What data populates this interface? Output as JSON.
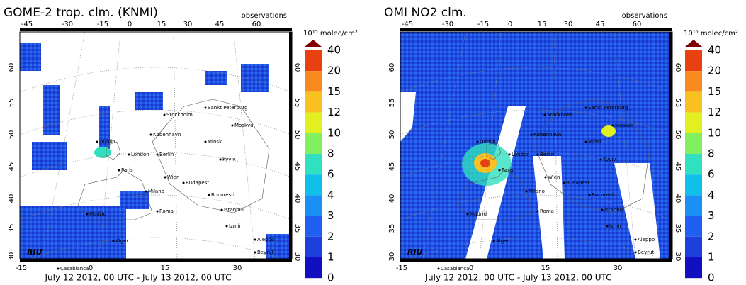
{
  "panels": [
    {
      "title": "GOME-2 trop. clm. (KNMI)",
      "corner_label": "observations",
      "top_ticks": [
        "-45",
        "-30",
        "-15",
        "0",
        "15",
        "30",
        "45",
        "60"
      ],
      "bottom_ticks": [
        "-15",
        "0",
        "15",
        "30"
      ],
      "side_ticks": [
        "60",
        "55",
        "50",
        "45",
        "40",
        "35",
        "30"
      ],
      "date": "July 12 2012, 00 UTC - July 13 2012, 00 UTC",
      "logo": "RIU"
    },
    {
      "title": "OMI NO2 clm.",
      "corner_label": "observations",
      "top_ticks": [
        "-45",
        "-30",
        "-15",
        "0",
        "15",
        "30",
        "45",
        "60"
      ],
      "bottom_ticks": [
        "-15",
        "0",
        "15",
        "30"
      ],
      "side_ticks": [
        "60",
        "55",
        "50",
        "45",
        "40",
        "35",
        "30"
      ],
      "date": "July 12 2012, 00 UTC - July 13 2012, 00 UTC",
      "logo": "RIU"
    }
  ],
  "colorbar": {
    "unit": "10¹⁵ molec/cm²",
    "labels": [
      "40",
      "20",
      "15",
      "12",
      "10",
      "8",
      "6",
      "4",
      "3",
      "2",
      "1",
      "0"
    ]
  },
  "cities": [
    "Sankt Peterburg",
    "Stockholm",
    "Moskva",
    "København",
    "Minsk",
    "Dublin",
    "London",
    "Berlin",
    "Kyyiv",
    "Paris",
    "Wien",
    "Budapest",
    "Milano",
    "Bucuresti",
    "Roma",
    "Istanbul",
    "Madrid",
    "Izmir",
    "Alger",
    "Aleppo",
    "Beyrut",
    "Casablanca"
  ]
}
